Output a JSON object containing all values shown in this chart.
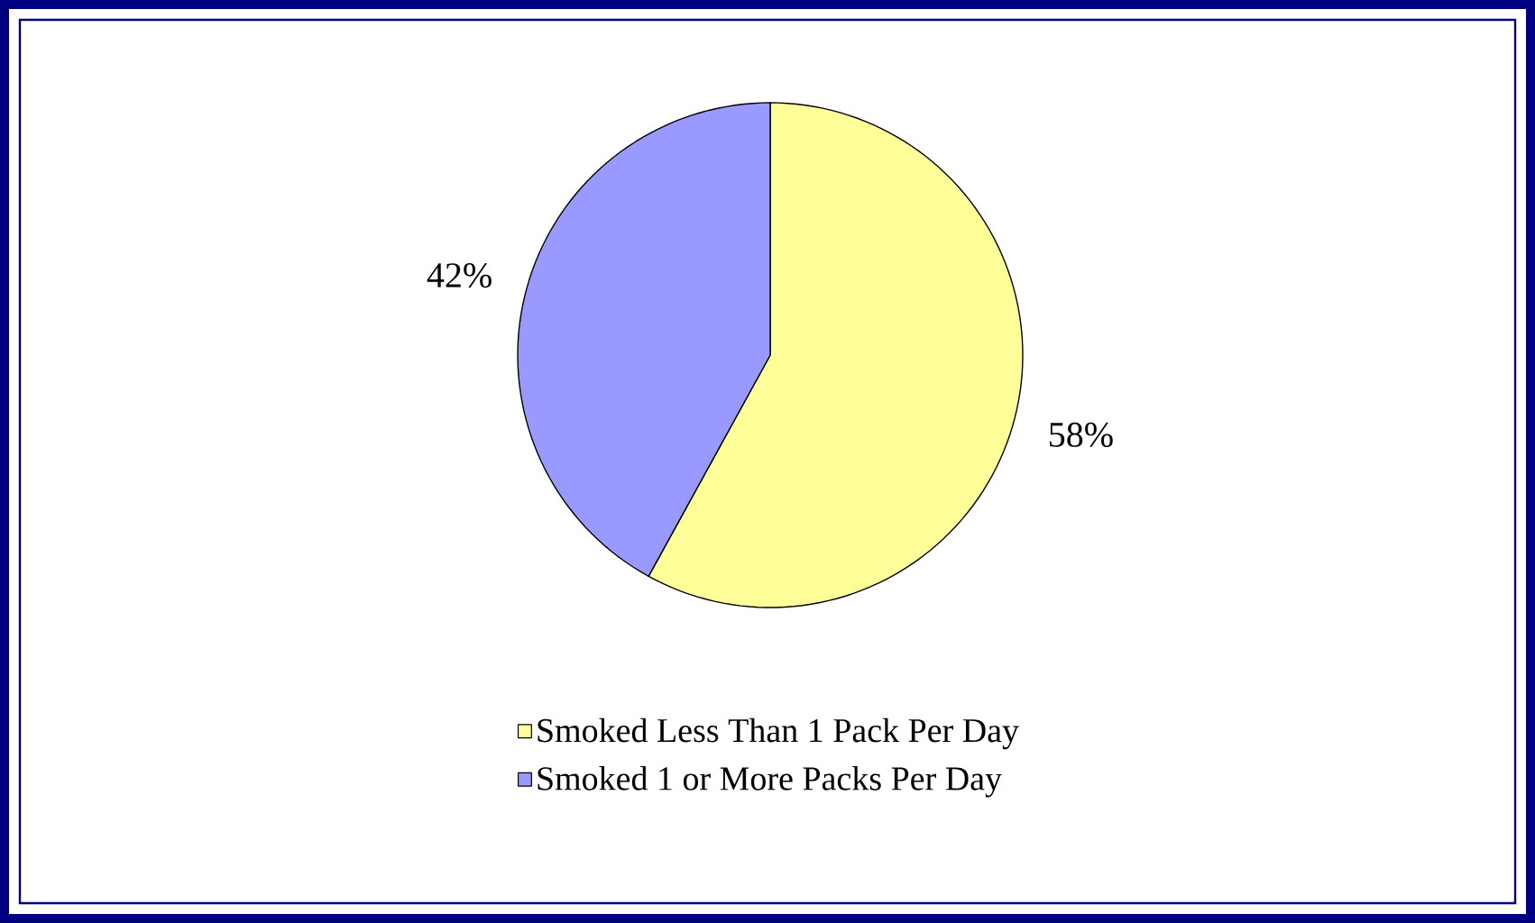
{
  "chart_data": {
    "type": "pie",
    "categories": [
      "Smoked Less Than 1 Pack Per Day",
      "Smoked 1 or More Packs Per Day"
    ],
    "values": [
      58,
      42
    ],
    "colors": [
      "#ffff99",
      "#9999ff"
    ],
    "value_labels": [
      "58%",
      "42%"
    ],
    "legend": "bottom"
  }
}
